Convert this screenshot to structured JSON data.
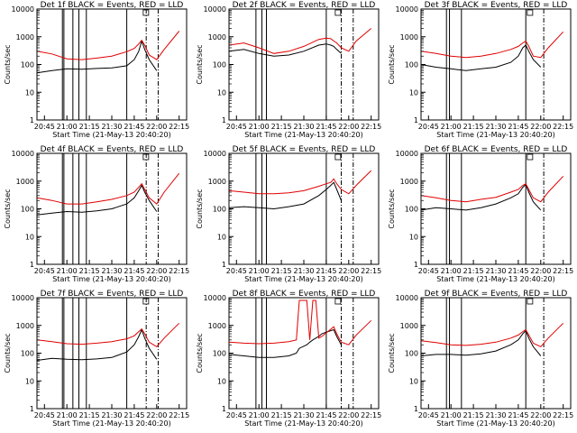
{
  "figure": {
    "background": "#ffffff",
    "axis_color": "#000000",
    "events_color": "#000000",
    "lld_color": "#e00000"
  },
  "chart_data": [
    {
      "type": "line",
      "panel": "1",
      "title": "Det 1f BLACK = Events, RED = LLD",
      "xlabel": "Start Time (21-May-13 20:40:20)",
      "ylabel": "Counts/sec",
      "xticks": [
        "20:45",
        "21:00",
        "21:15",
        "21:30",
        "21:45",
        "22:00",
        "22:15"
      ],
      "yticks": [
        "1",
        "10",
        "100",
        "1000",
        "10000"
      ],
      "ylim": [
        1,
        10000
      ],
      "y_scale": "log",
      "x_minutes": [
        0,
        10,
        20,
        30,
        40,
        50,
        60,
        65,
        68,
        70,
        72,
        75,
        80,
        85,
        95
      ],
      "series": [
        {
          "name": "Events",
          "color": "#000000",
          "y": [
            50,
            60,
            70,
            68,
            72,
            75,
            90,
            150,
            300,
            700,
            350,
            150,
            60,
            null,
            null
          ]
        },
        {
          "name": "LLD",
          "color": "#e00000",
          "y": [
            300,
            240,
            160,
            150,
            170,
            200,
            290,
            380,
            550,
            750,
            500,
            220,
            150,
            350,
            1600
          ]
        }
      ],
      "vlines_solid": [
        17,
        18,
        24,
        28,
        33,
        60
      ],
      "vlines_dashdot": [
        73,
        81
      ]
    },
    {
      "type": "line",
      "panel": "2",
      "title": "Det 2f BLACK = Events, RED = LLD",
      "xlabel": "Start Time (21-May-13 20:40:20)",
      "ylabel": "Counts/sec",
      "xticks": [
        "20:45",
        "21:00",
        "21:15",
        "21:30",
        "21:45",
        "22:00",
        "22:15"
      ],
      "yticks": [
        "1",
        "10",
        "100",
        "1000",
        "10000"
      ],
      "ylim": [
        1,
        10000
      ],
      "y_scale": "log",
      "x_minutes": [
        0,
        10,
        20,
        30,
        40,
        50,
        60,
        65,
        68,
        70,
        72,
        75,
        80,
        85,
        95
      ],
      "series": [
        {
          "name": "Events",
          "color": "#000000",
          "y": [
            300,
            350,
            250,
            200,
            220,
            300,
            500,
            550,
            500,
            450,
            350,
            250,
            null,
            null,
            null
          ]
        },
        {
          "name": "LLD",
          "color": "#e00000",
          "y": [
            500,
            600,
            400,
            250,
            300,
            450,
            800,
            900,
            850,
            700,
            600,
            400,
            300,
            700,
            2000
          ]
        }
      ],
      "vlines_solid": [
        18,
        22,
        25,
        65
      ],
      "vlines_dashdot": [
        75,
        83
      ]
    },
    {
      "type": "line",
      "panel": "3",
      "title": "Det 3f BLACK = Events, RED = LLD",
      "xlabel": "Start Time (21-May-13 20:40:20)",
      "ylabel": "Counts/sec",
      "xticks": [
        "20:45",
        "21:00",
        "21:15",
        "21:30",
        "21:45",
        "22:00",
        "22:15"
      ],
      "yticks": [
        "1",
        "10",
        "100",
        "1000",
        "10000"
      ],
      "ylim": [
        1,
        10000
      ],
      "y_scale": "log",
      "x_minutes": [
        0,
        10,
        20,
        30,
        40,
        50,
        60,
        65,
        68,
        70,
        72,
        75,
        80,
        85,
        95
      ],
      "series": [
        {
          "name": "Events",
          "color": "#000000",
          "y": [
            100,
            80,
            70,
            60,
            70,
            80,
            120,
            200,
            400,
            500,
            300,
            150,
            80,
            null,
            null
          ]
        },
        {
          "name": "LLD",
          "color": "#e00000",
          "y": [
            300,
            250,
            200,
            180,
            200,
            250,
            350,
            450,
            600,
            700,
            450,
            200,
            180,
            400,
            1500
          ]
        }
      ],
      "vlines_solid": [
        17,
        19,
        27,
        70
      ],
      "vlines_dashdot": [
        82
      ]
    },
    {
      "type": "line",
      "panel": "4",
      "title": "Det 4f BLACK = Events, RED = LLD",
      "xlabel": "Start Time (21-May-13 20:40:20)",
      "ylabel": "Counts/sec",
      "xticks": [
        "20:45",
        "21:00",
        "21:15",
        "21:30",
        "21:45",
        "22:00",
        "22:15"
      ],
      "yticks": [
        "1",
        "10",
        "100",
        "1000",
        "10000"
      ],
      "ylim": [
        1,
        10000
      ],
      "y_scale": "log",
      "x_minutes": [
        0,
        10,
        20,
        30,
        40,
        50,
        60,
        65,
        68,
        70,
        72,
        75,
        80,
        85,
        95
      ],
      "series": [
        {
          "name": "Events",
          "color": "#000000",
          "y": [
            60,
            70,
            80,
            75,
            85,
            100,
            150,
            250,
            450,
            700,
            400,
            200,
            80,
            null,
            null
          ]
        },
        {
          "name": "LLD",
          "color": "#e00000",
          "y": [
            250,
            200,
            150,
            150,
            180,
            220,
            300,
            400,
            600,
            800,
            500,
            250,
            150,
            400,
            1900
          ]
        }
      ],
      "vlines_solid": [
        17,
        18,
        24,
        28,
        33,
        60
      ],
      "vlines_dashdot": [
        73,
        81
      ]
    },
    {
      "type": "line",
      "panel": "5",
      "title": "Det 5f BLACK = Events, RED = LLD",
      "xlabel": "Start Time (21-May-13 20:40:20)",
      "ylabel": "Counts/sec",
      "xticks": [
        "20:45",
        "21:00",
        "21:15",
        "21:30",
        "21:45",
        "22:00",
        "22:15"
      ],
      "yticks": [
        "1",
        "10",
        "100",
        "1000",
        "10000"
      ],
      "ylim": [
        1,
        10000
      ],
      "y_scale": "log",
      "x_minutes": [
        0,
        10,
        20,
        30,
        40,
        50,
        60,
        65,
        68,
        70,
        72,
        75,
        80,
        85,
        95
      ],
      "series": [
        {
          "name": "Events",
          "color": "#000000",
          "y": [
            110,
            120,
            110,
            100,
            120,
            150,
            300,
            500,
            700,
            900,
            500,
            200,
            null,
            null,
            null
          ]
        },
        {
          "name": "LLD",
          "color": "#e00000",
          "y": [
            450,
            400,
            350,
            350,
            380,
            450,
            650,
            800,
            900,
            1200,
            800,
            500,
            350,
            700,
            2400
          ]
        }
      ],
      "vlines_solid": [
        18,
        22,
        25,
        65
      ],
      "vlines_dashdot": [
        75,
        83
      ]
    },
    {
      "type": "line",
      "panel": "6",
      "title": "Det 6f BLACK = Events, RED = LLD",
      "xlabel": "Start Time (21-May-13 20:40:20)",
      "ylabel": "Counts/sec",
      "xticks": [
        "20:45",
        "21:00",
        "21:15",
        "21:30",
        "21:45",
        "22:00",
        "22:15"
      ],
      "yticks": [
        "1",
        "10",
        "100",
        "1000",
        "10000"
      ],
      "ylim": [
        1,
        10000
      ],
      "y_scale": "log",
      "x_minutes": [
        0,
        10,
        20,
        30,
        40,
        50,
        60,
        65,
        68,
        70,
        72,
        75,
        80,
        85,
        95
      ],
      "series": [
        {
          "name": "Events",
          "color": "#000000",
          "y": [
            90,
            110,
            100,
            90,
            110,
            150,
            250,
            350,
            600,
            750,
            400,
            180,
            90,
            null,
            null
          ]
        },
        {
          "name": "LLD",
          "color": "#e00000",
          "y": [
            300,
            250,
            200,
            180,
            220,
            260,
            400,
            500,
            700,
            800,
            500,
            250,
            180,
            400,
            1500
          ]
        }
      ],
      "vlines_solid": [
        17,
        19,
        27,
        70
      ],
      "vlines_dashdot": [
        82
      ]
    },
    {
      "type": "line",
      "panel": "7",
      "title": "Det 7f BLACK = Events, RED = LLD",
      "xlabel": "Start Time (21-May-13 20:40:20)",
      "ylabel": "Counts/sec",
      "xticks": [
        "20:45",
        "21:00",
        "21:15",
        "21:30",
        "21:45",
        "22:00",
        "22:15"
      ],
      "yticks": [
        "1",
        "10",
        "100",
        "1000",
        "10000"
      ],
      "ylim": [
        1,
        10000
      ],
      "y_scale": "log",
      "x_minutes": [
        0,
        10,
        20,
        30,
        40,
        50,
        60,
        65,
        68,
        70,
        72,
        75,
        80,
        85,
        95
      ],
      "series": [
        {
          "name": "Events",
          "color": "#000000",
          "y": [
            55,
            65,
            60,
            58,
            62,
            70,
            110,
            200,
            400,
            700,
            350,
            150,
            60,
            null,
            null
          ]
        },
        {
          "name": "LLD",
          "color": "#e00000",
          "y": [
            300,
            260,
            220,
            210,
            230,
            260,
            330,
            420,
            600,
            750,
            500,
            250,
            170,
            350,
            1200
          ]
        }
      ],
      "vlines_solid": [
        17,
        18,
        24,
        28,
        33,
        60
      ],
      "vlines_dashdot": [
        73,
        81
      ]
    },
    {
      "type": "line",
      "panel": "8",
      "title": "Det 8f BLACK = Events, RED = LLD",
      "xlabel": "Start Time (21-May-13 20:40:20)",
      "ylabel": "Counts/sec",
      "xticks": [
        "20:45",
        "21:00",
        "21:15",
        "21:30",
        "21:45",
        "22:00",
        "22:15"
      ],
      "yticks": [
        "1",
        "10",
        "100",
        "1000",
        "10000"
      ],
      "ylim": [
        1,
        10000
      ],
      "y_scale": "log",
      "x_minutes": [
        0,
        10,
        20,
        30,
        40,
        45,
        47,
        52,
        54,
        56,
        58,
        60,
        62,
        66,
        70,
        72,
        75,
        80,
        85,
        95
      ],
      "series": [
        {
          "name": "Events",
          "color": "#000000",
          "y": [
            90,
            80,
            70,
            70,
            80,
            100,
            150,
            200,
            250,
            300,
            350,
            400,
            500,
            600,
            700,
            400,
            200,
            null,
            null,
            null
          ]
        },
        {
          "name": "LLD",
          "color": "#e00000",
          "y": [
            250,
            230,
            220,
            230,
            260,
            300,
            8000,
            8000,
            300,
            8000,
            8000,
            350,
            400,
            600,
            900,
            500,
            250,
            200,
            450,
            1500
          ]
        }
      ],
      "vlines_solid": [
        18,
        22,
        25,
        65
      ],
      "vlines_dashdot": [
        75,
        83
      ]
    },
    {
      "type": "line",
      "panel": "9",
      "title": "Det 9f BLACK = Events, RED = LLD",
      "xlabel": "Start Time (21-May-13 20:40:20)",
      "ylabel": "Counts/sec",
      "xticks": [
        "20:45",
        "21:00",
        "21:15",
        "21:30",
        "21:45",
        "22:00",
        "22:15"
      ],
      "yticks": [
        "1",
        "10",
        "100",
        "1000",
        "10000"
      ],
      "ylim": [
        1,
        10000
      ],
      "y_scale": "log",
      "x_minutes": [
        0,
        10,
        20,
        30,
        40,
        50,
        60,
        65,
        68,
        70,
        72,
        75,
        80,
        85,
        95
      ],
      "series": [
        {
          "name": "Events",
          "color": "#000000",
          "y": [
            80,
            90,
            90,
            85,
            95,
            120,
            200,
            300,
            500,
            650,
            350,
            170,
            80,
            null,
            null
          ]
        },
        {
          "name": "LLD",
          "color": "#e00000",
          "y": [
            280,
            240,
            200,
            190,
            210,
            250,
            350,
            450,
            600,
            700,
            450,
            230,
            170,
            350,
            1200
          ]
        }
      ],
      "vlines_solid": [
        17,
        19,
        27,
        70
      ],
      "vlines_dashdot": [
        82
      ]
    }
  ]
}
